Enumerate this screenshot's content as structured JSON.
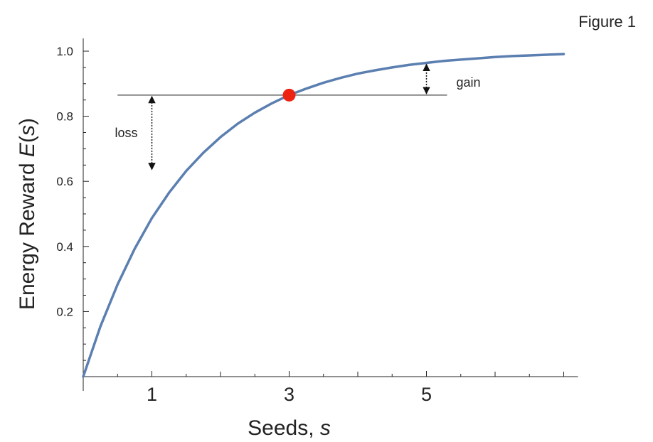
{
  "figure_label": "Figure 1",
  "colors": {
    "curve": "#5b7fb0",
    "point": "#ee2211",
    "axis": "#222222",
    "annotation": "#111111"
  },
  "chart_data": {
    "type": "line",
    "title": "",
    "xlabel_main": "Seeds,",
    "xlabel_var": "s",
    "ylabel_main": "Energy Reward",
    "ylabel_fn": "E",
    "ylabel_arg": "s",
    "xlim": [
      0,
      7.0
    ],
    "ylim": [
      0,
      1.0
    ],
    "x_ticks": [
      1,
      3,
      5
    ],
    "x_tick_labels": [
      "1",
      "3",
      "5"
    ],
    "y_ticks": [
      0.2,
      0.4,
      0.6,
      0.8,
      1.0
    ],
    "y_tick_labels": [
      "0.2",
      "0.4",
      "0.6",
      "0.8",
      "1.0"
    ],
    "series": [
      {
        "function": "1 - exp(-s/1.5)",
        "x": [
          0,
          0.25,
          0.5,
          0.75,
          1.0,
          1.25,
          1.5,
          1.75,
          2.0,
          2.25,
          2.5,
          2.75,
          3.0,
          3.25,
          3.5,
          3.75,
          4.0,
          4.25,
          4.5,
          4.75,
          5.0,
          5.25,
          5.5,
          5.75,
          6.0,
          6.25,
          6.5,
          6.75,
          7.0
        ],
        "y": [
          0.0,
          0.154,
          0.283,
          0.393,
          0.487,
          0.565,
          0.632,
          0.688,
          0.736,
          0.777,
          0.811,
          0.84,
          0.865,
          0.885,
          0.903,
          0.918,
          0.931,
          0.941,
          0.95,
          0.958,
          0.964,
          0.97,
          0.974,
          0.978,
          0.982,
          0.985,
          0.987,
          0.989,
          0.991
        ]
      }
    ],
    "highlight_point": {
      "x": 3,
      "y": 0.865
    },
    "reference_line": {
      "y": 0.865,
      "x_from": 0.5,
      "x_to": 5.3
    },
    "annotations": [
      {
        "text": "loss",
        "x": 1,
        "y_from": 0.865,
        "y_to": 0.632
      },
      {
        "text": "gain",
        "x": 5,
        "y_from": 0.865,
        "y_to": 0.964
      }
    ]
  }
}
